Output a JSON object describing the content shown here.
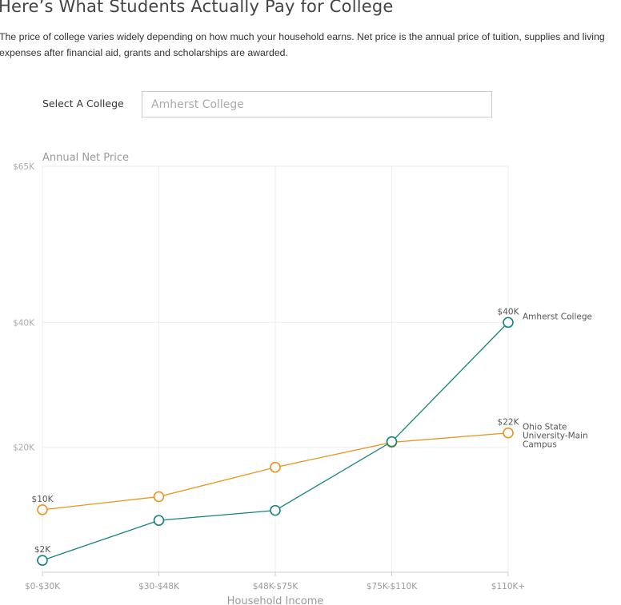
{
  "header": {
    "title": "Here’s What Students Actually Pay for College",
    "description": "The price of college varies widely depending on how much your household earns. Net price is the annual price of tuition, supplies and living expenses after financial aid, grants and scholarships are awarded."
  },
  "selector": {
    "label": "Select A College",
    "value": "Amherst College"
  },
  "chart_data": {
    "type": "line",
    "title": "",
    "ylabel": "Annual Net Price",
    "xlabel": "Household Income",
    "categories": [
      "$0-$30K",
      "$30-$48K",
      "$48K-$75K",
      "$75K-$110K",
      "$110K+"
    ],
    "ylim": [
      0,
      65
    ],
    "yticks": [
      {
        "value": 65,
        "label": "$65K"
      },
      {
        "value": 40,
        "label": "$40K"
      },
      {
        "value": 20,
        "label": "$20K"
      }
    ],
    "grid": true,
    "series": [
      {
        "name": "Ohio State University-Main Campus",
        "name_lines": [
          "Ohio State",
          "University-Main",
          "Campus"
        ],
        "color": "#e8951f",
        "values": [
          10,
          12.1,
          16.8,
          20.8,
          22.3
        ],
        "labels": {
          "first": "$10K",
          "last": "$22K"
        }
      },
      {
        "name": "Amherst College",
        "name_lines": [
          "Amherst College"
        ],
        "color": "#13837d",
        "values": [
          1.9,
          8.3,
          9.9,
          20.9,
          40
        ],
        "labels": {
          "first": "$2K",
          "last": "$40K"
        }
      }
    ]
  }
}
